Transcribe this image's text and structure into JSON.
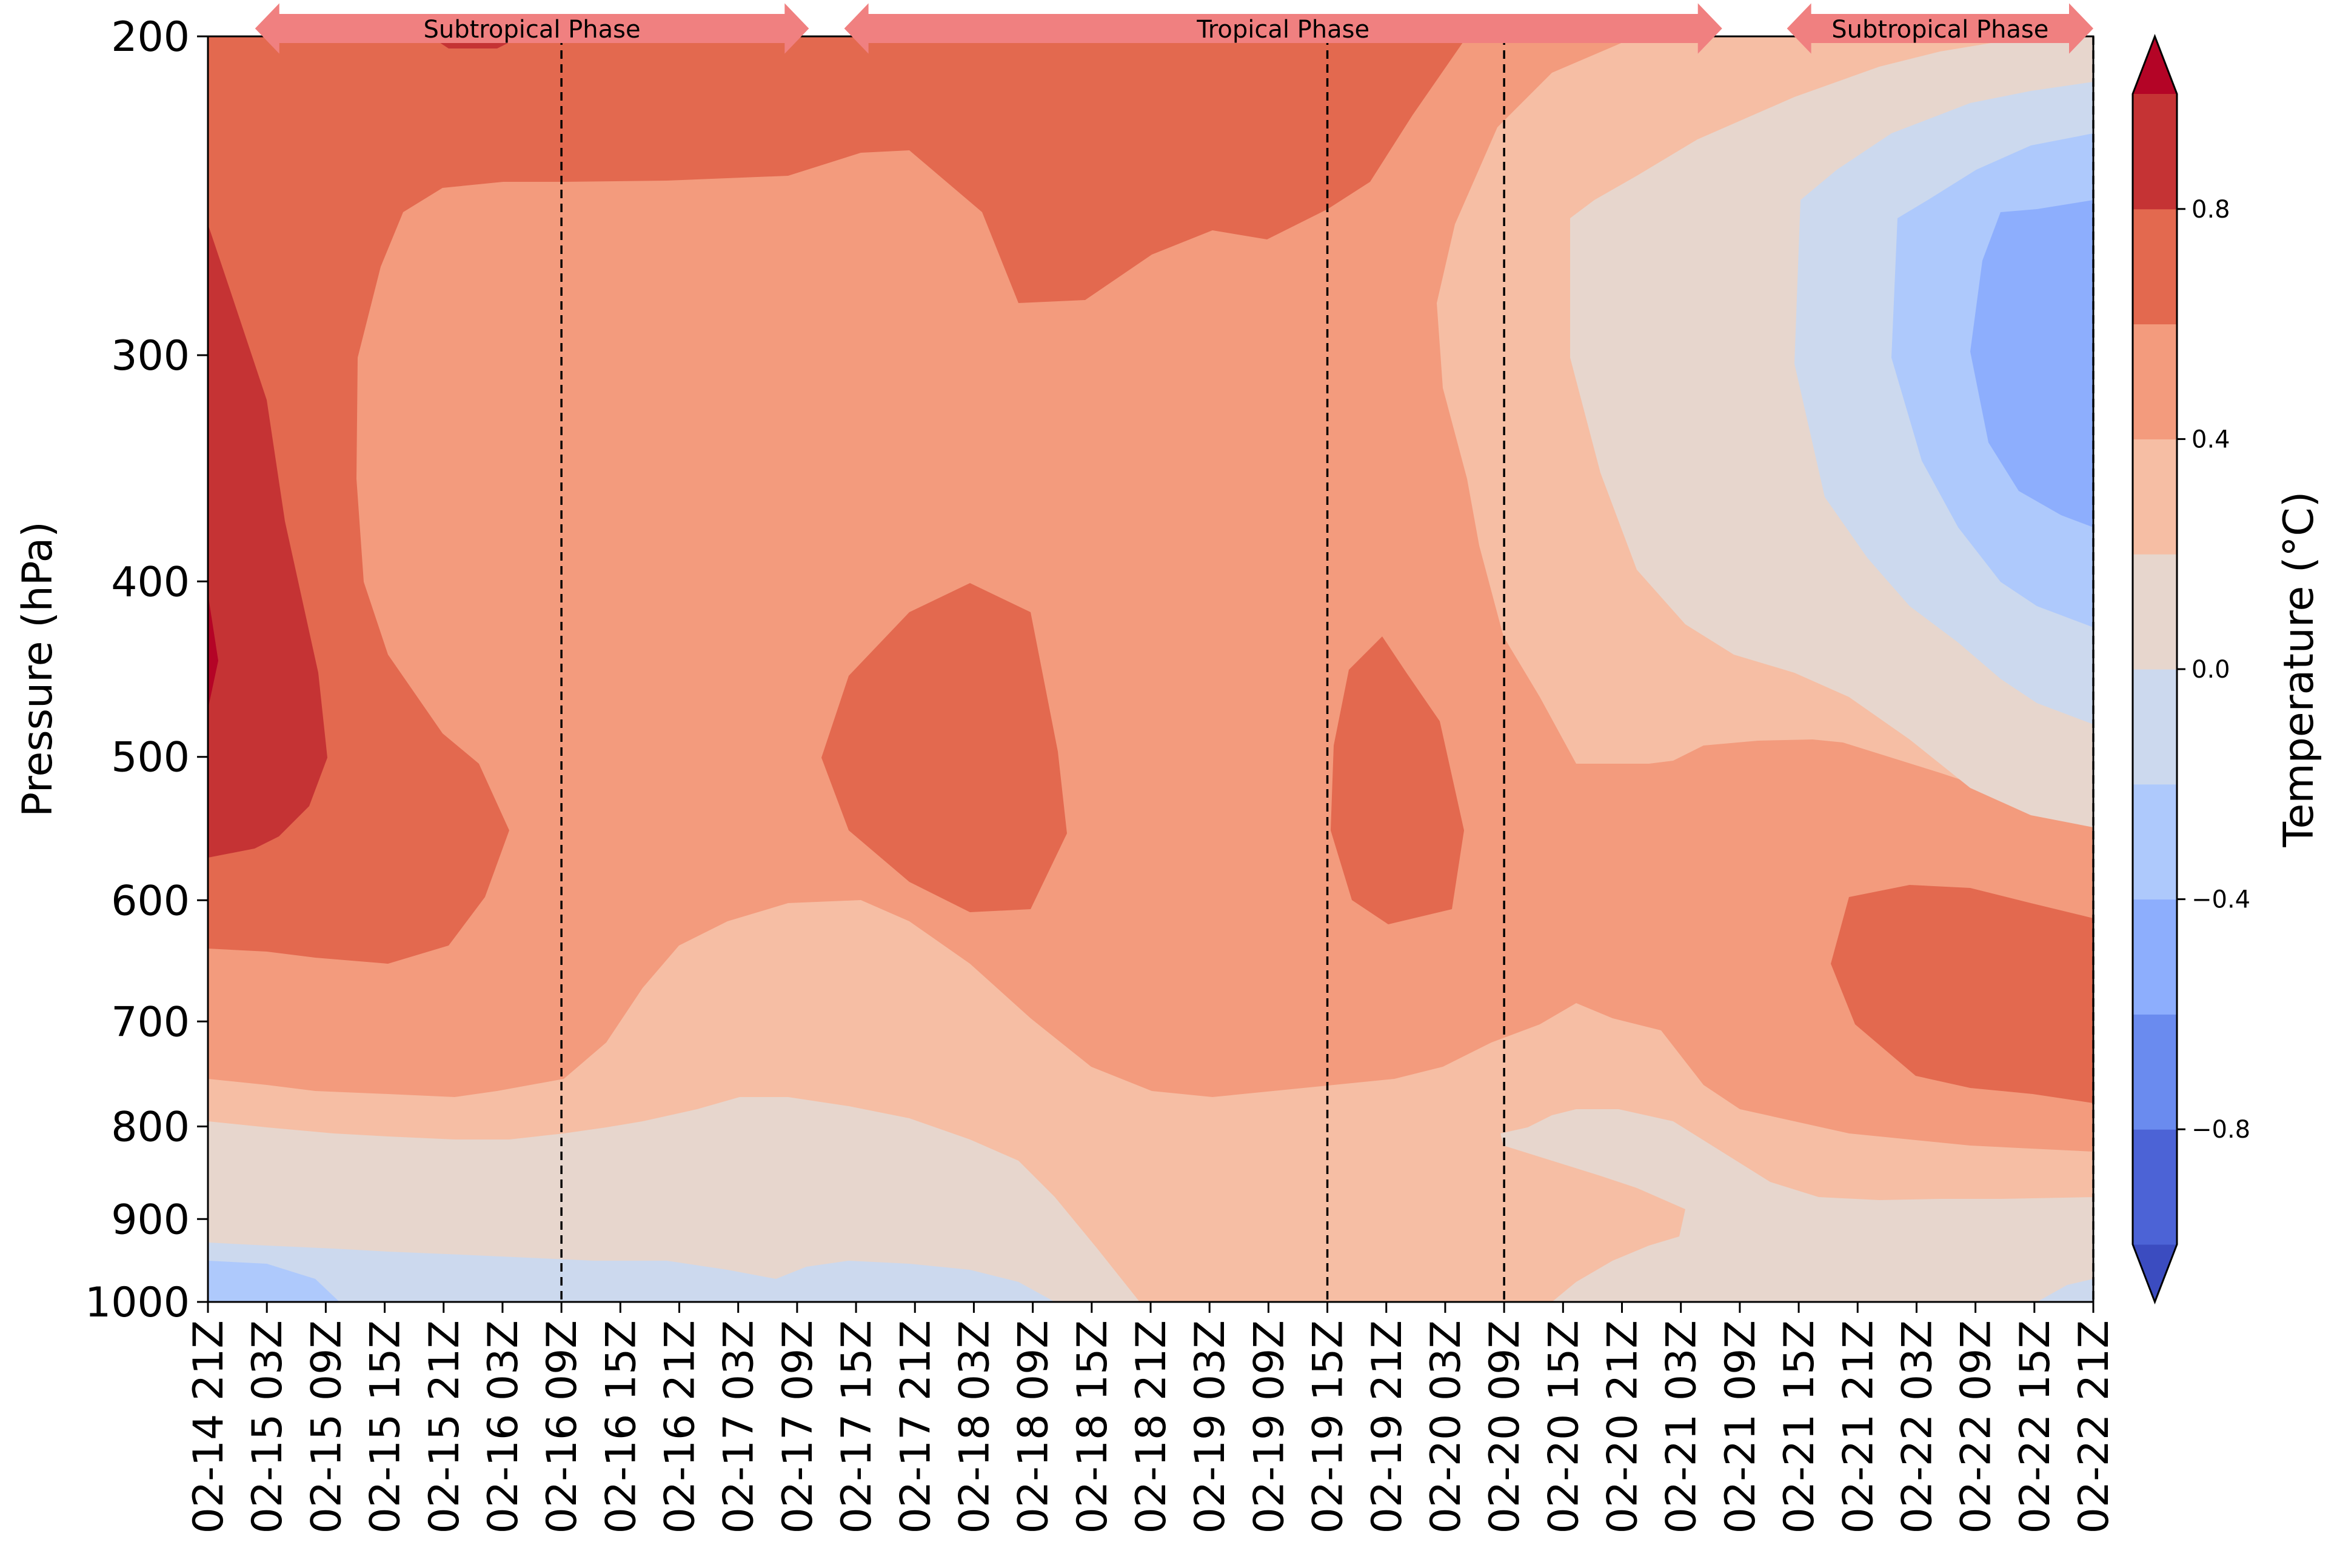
{
  "chart_data": {
    "type": "heatmap",
    "subtype": "filled-contour",
    "title": "",
    "xlabel": "",
    "ylabel": "Pressure (hPa)",
    "x_tick_labels": [
      "02-14 21Z",
      "02-15 03Z",
      "02-15 09Z",
      "02-15 15Z",
      "02-15 21Z",
      "02-16 03Z",
      "02-16 09Z",
      "02-16 15Z",
      "02-16 21Z",
      "02-17 03Z",
      "02-17 09Z",
      "02-17 15Z",
      "02-17 21Z",
      "02-18 03Z",
      "02-18 09Z",
      "02-18 15Z",
      "02-18 21Z",
      "02-19 03Z",
      "02-19 09Z",
      "02-19 15Z",
      "02-19 21Z",
      "02-20 03Z",
      "02-20 09Z",
      "02-20 15Z",
      "02-20 21Z",
      "02-21 03Z",
      "02-21 09Z",
      "02-21 15Z",
      "02-21 21Z",
      "02-22 03Z",
      "02-22 09Z",
      "02-22 15Z",
      "02-22 21Z"
    ],
    "y_ticks": [
      200,
      300,
      400,
      500,
      600,
      700,
      800,
      900,
      1000
    ],
    "y_scale": "log",
    "y_inverted": true,
    "ylim": [
      1000,
      200
    ],
    "colormap": "coolwarm",
    "colorbar": {
      "label": "Temperature (°C)",
      "range": [
        -1.0,
        1.0
      ],
      "levels": [
        -1.0,
        -0.8,
        -0.6,
        -0.4,
        -0.2,
        0.0,
        0.2,
        0.4,
        0.6,
        0.8,
        1.0
      ],
      "tick_values": [
        -0.8,
        -0.4,
        0.0,
        0.4,
        0.8
      ],
      "tick_labels": [
        "−0.8",
        "−0.4",
        "0.0",
        "0.4",
        "0.8"
      ],
      "extend": "both",
      "colors": [
        "#3b4cc0",
        "#4c63d6",
        "#6a8bef",
        "#8daefd",
        "#aec9fc",
        "#ccd9ee",
        "#e7d6cd",
        "#f6bea4",
        "#f39b7d",
        "#e3694f",
        "#c53334",
        "#b40426"
      ]
    },
    "phases": [
      {
        "label": "Subtropical Phase",
        "start": 0.8,
        "end": 10.2
      },
      {
        "label": "Tropical Phase",
        "start": 10.8,
        "end": 25.7
      },
      {
        "label": "Subtropical Phase",
        "start": 26.8,
        "end": 32.0
      }
    ],
    "phase_arrow_color": "#f08080",
    "vertical_markers": [
      "02-16 09Z",
      "02-19 15Z",
      "02-20 09Z",
      "02-22 21Z"
    ]
  }
}
